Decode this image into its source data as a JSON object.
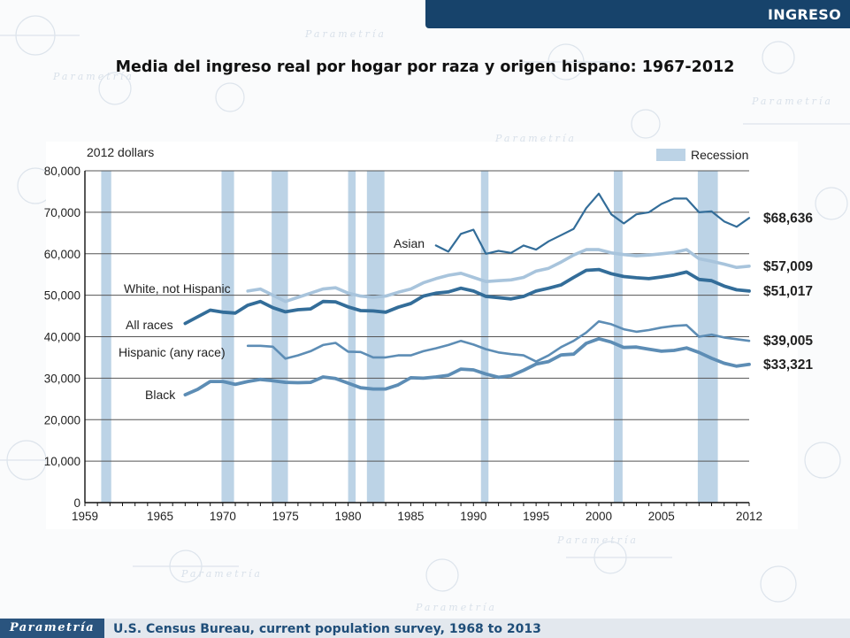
{
  "header": {
    "label": "INGRESO"
  },
  "page_title": "Media del ingreso real por hogar por raza y origen hispano: 1967-2012",
  "footer": {
    "brand": "Parametría",
    "source": "U.S. Census Bureau, current population survey, 1968 to 2013"
  },
  "watermark": {
    "text": "Parametría"
  },
  "colors": {
    "recession": "#bcd3e6",
    "dark": "#336d99",
    "mid": "#5d8db5",
    "light": "#a8c4dc",
    "grid": "#555555",
    "text": "#222222"
  },
  "chart_data": {
    "type": "line",
    "ylabel": "2012 dollars",
    "ylim": [
      0,
      80000
    ],
    "xlim": [
      1959,
      2012
    ],
    "yticks": [
      "0",
      "10,000",
      "20,000",
      "30,000",
      "40,000",
      "50,000",
      "60,000",
      "70,000",
      "80,000"
    ],
    "ytick_values": [
      0,
      10000,
      20000,
      30000,
      40000,
      50000,
      60000,
      70000,
      80000
    ],
    "xticks": [
      "1959",
      "1965",
      "1970",
      "1975",
      "1980",
      "1985",
      "1990",
      "1995",
      "2000",
      "2005",
      "2012"
    ],
    "xtick_values": [
      1959,
      1965,
      1970,
      1975,
      1980,
      1985,
      1990,
      1995,
      2000,
      2005,
      2012
    ],
    "grid": "horizontal",
    "legend": {
      "label": "Recession",
      "position": "top-right"
    },
    "recessions": [
      [
        1960.3,
        1961.1
      ],
      [
        1969.9,
        1970.9
      ],
      [
        1973.9,
        1975.2
      ],
      [
        1980.0,
        1980.6
      ],
      [
        1981.5,
        1982.9
      ],
      [
        1990.6,
        1991.2
      ],
      [
        2001.2,
        2001.9
      ],
      [
        2007.9,
        2009.5
      ]
    ],
    "series": [
      {
        "name": "Asian",
        "end_label": "$68,636",
        "color": "dark",
        "width": 2.2,
        "x": [
          1987,
          1988,
          1989,
          1990,
          1991,
          1992,
          1993,
          1994,
          1995,
          1996,
          1997,
          1998,
          1999,
          2000,
          2001,
          2002,
          2003,
          2004,
          2005,
          2006,
          2007,
          2008,
          2009,
          2010,
          2011,
          2012
        ],
        "y": [
          62000,
          60500,
          64800,
          65800,
          60000,
          60700,
          60200,
          62000,
          61000,
          63000,
          64500,
          66000,
          71000,
          74500,
          69500,
          67300,
          69500,
          70000,
          72000,
          73300,
          73300,
          70000,
          70200,
          67800,
          66500,
          68636
        ]
      },
      {
        "name": "White, not Hispanic",
        "end_label": "$57,009",
        "color": "light",
        "width": 3.6,
        "x": [
          1972,
          1973,
          1974,
          1975,
          1976,
          1977,
          1978,
          1979,
          1980,
          1981,
          1982,
          1983,
          1984,
          1985,
          1986,
          1987,
          1988,
          1989,
          1990,
          1991,
          1992,
          1993,
          1994,
          1995,
          1996,
          1997,
          1998,
          1999,
          2000,
          2001,
          2002,
          2003,
          2004,
          2005,
          2006,
          2007,
          2008,
          2009,
          2010,
          2011,
          2012
        ],
        "y": [
          51000,
          51500,
          50000,
          48500,
          49500,
          50500,
          51500,
          51800,
          50500,
          49800,
          49500,
          49800,
          50700,
          51500,
          53000,
          54000,
          54800,
          55300,
          54300,
          53300,
          53500,
          53700,
          54300,
          55800,
          56500,
          58000,
          59700,
          61000,
          61000,
          60200,
          59800,
          59500,
          59700,
          60000,
          60300,
          61000,
          58800,
          58200,
          57500,
          56700,
          57009
        ]
      },
      {
        "name": "All races",
        "end_label": "$51,017",
        "color": "dark",
        "width": 3.8,
        "x": [
          1967,
          1968,
          1969,
          1970,
          1971,
          1972,
          1973,
          1974,
          1975,
          1976,
          1977,
          1978,
          1979,
          1980,
          1981,
          1982,
          1983,
          1984,
          1985,
          1986,
          1987,
          1988,
          1989,
          1990,
          1991,
          1992,
          1993,
          1994,
          1995,
          1996,
          1997,
          1998,
          1999,
          2000,
          2001,
          2002,
          2003,
          2004,
          2005,
          2006,
          2007,
          2008,
          2009,
          2010,
          2011,
          2012
        ],
        "y": [
          43200,
          44800,
          46400,
          45900,
          45700,
          47600,
          48500,
          47000,
          46000,
          46500,
          46700,
          48500,
          48400,
          47200,
          46300,
          46200,
          45900,
          47100,
          48000,
          49800,
          50500,
          50800,
          51700,
          51000,
          49700,
          49400,
          49100,
          49700,
          51000,
          51700,
          52500,
          54300,
          56000,
          56200,
          55200,
          54500,
          54200,
          54000,
          54400,
          54900,
          55600,
          53800,
          53500,
          52200,
          51300,
          51017
        ]
      },
      {
        "name": "Hispanic (any race)",
        "end_label": "$39,005",
        "color": "mid",
        "width": 2.6,
        "x": [
          1972,
          1973,
          1974,
          1975,
          1976,
          1977,
          1978,
          1979,
          1980,
          1981,
          1982,
          1983,
          1984,
          1985,
          1986,
          1987,
          1988,
          1989,
          1990,
          1991,
          1992,
          1993,
          1994,
          1995,
          1996,
          1997,
          1998,
          1999,
          2000,
          2001,
          2002,
          2003,
          2004,
          2005,
          2006,
          2007,
          2008,
          2009,
          2010,
          2011,
          2012
        ],
        "y": [
          37800,
          37800,
          37600,
          34700,
          35500,
          36500,
          38000,
          38500,
          36400,
          36300,
          35000,
          35000,
          35500,
          35500,
          36500,
          37200,
          38000,
          39000,
          38100,
          37000,
          36200,
          35800,
          35500,
          34000,
          35500,
          37500,
          39000,
          41000,
          43700,
          43000,
          41800,
          41200,
          41600,
          42200,
          42600,
          42800,
          40000,
          40500,
          39800,
          39400,
          39005
        ]
      },
      {
        "name": "Black",
        "end_label": "$33,321",
        "color": "mid",
        "width": 3.8,
        "x": [
          1967,
          1968,
          1969,
          1970,
          1971,
          1972,
          1973,
          1974,
          1975,
          1976,
          1977,
          1978,
          1979,
          1980,
          1981,
          1982,
          1983,
          1984,
          1985,
          1986,
          1987,
          1988,
          1989,
          1990,
          1991,
          1992,
          1993,
          1994,
          1995,
          1996,
          1997,
          1998,
          1999,
          2000,
          2001,
          2002,
          2003,
          2004,
          2005,
          2006,
          2007,
          2008,
          2009,
          2010,
          2011,
          2012
        ],
        "y": [
          26000,
          27300,
          29200,
          29200,
          28500,
          29200,
          29700,
          29400,
          29000,
          28900,
          29000,
          30300,
          29900,
          28800,
          27700,
          27400,
          27400,
          28400,
          30100,
          30000,
          30300,
          30700,
          32200,
          32000,
          31000,
          30200,
          30600,
          31900,
          33400,
          34000,
          35600,
          35800,
          38400,
          39500,
          38700,
          37400,
          37500,
          37000,
          36500,
          36700,
          37300,
          36200,
          34800,
          33600,
          32900,
          33321
        ]
      }
    ]
  }
}
